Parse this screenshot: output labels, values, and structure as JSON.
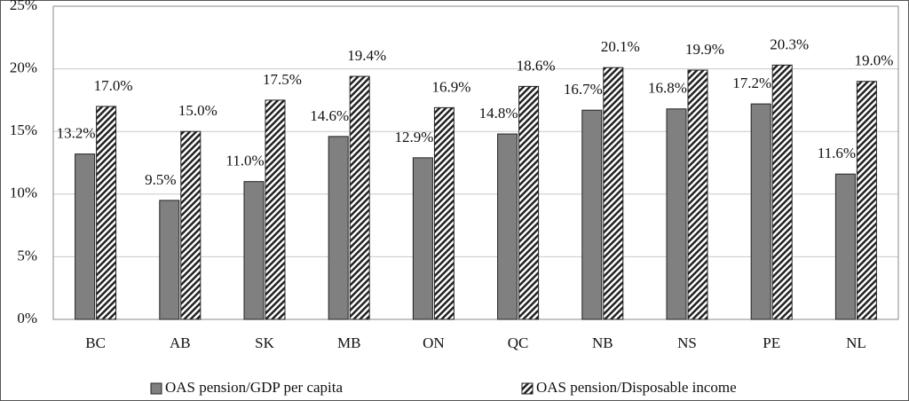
{
  "chart_data": {
    "type": "bar",
    "categories": [
      "BC",
      "AB",
      "SK",
      "MB",
      "ON",
      "QC",
      "NB",
      "NS",
      "PE",
      "NL"
    ],
    "series": [
      {
        "name": "OAS pension/GDP per capita",
        "color": "#808080",
        "values": [
          13.2,
          9.5,
          11.0,
          14.6,
          12.9,
          14.8,
          16.7,
          16.8,
          17.2,
          11.6
        ],
        "value_labels": [
          "13.2%",
          "9.5%",
          "11.0%",
          "14.6%",
          "12.9%",
          "14.8%",
          "16.7%",
          "16.8%",
          "17.2%",
          "11.6%"
        ]
      },
      {
        "name": "OAS pension/Disposable income",
        "color": "#222222",
        "values": [
          17.0,
          15.0,
          17.5,
          19.4,
          16.9,
          18.6,
          20.1,
          19.9,
          20.3,
          19.0
        ],
        "value_labels": [
          "17.0%",
          "15.0%",
          "17.5%",
          "19.4%",
          "16.9%",
          "18.6%",
          "20.1%",
          "19.9%",
          "20.3%",
          "19.0%"
        ]
      }
    ],
    "ylim": [
      0,
      25
    ],
    "yticks": [
      {
        "value": 0,
        "label": "0%"
      },
      {
        "value": 5,
        "label": "5%"
      },
      {
        "value": 10,
        "label": "10%"
      },
      {
        "value": 15,
        "label": "15%"
      },
      {
        "value": 20,
        "label": "20%"
      },
      {
        "value": 25,
        "label": "25%"
      }
    ],
    "grid": true,
    "legend": "bottom"
  }
}
